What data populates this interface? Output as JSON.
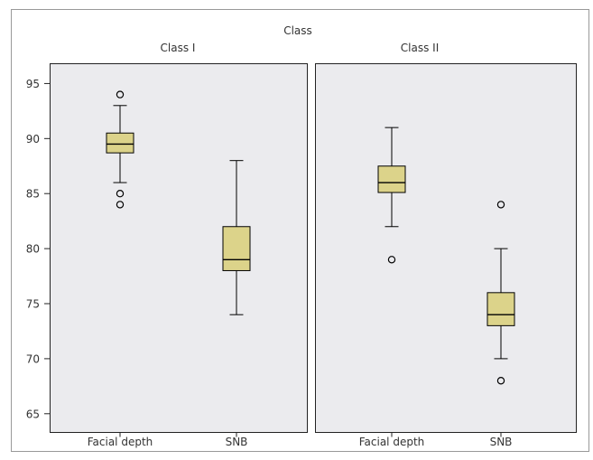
{
  "chart_data": {
    "type": "boxplot",
    "title": "Class",
    "panels": [
      {
        "label": "Class I",
        "categories": [
          "Facial depth",
          "SNB"
        ],
        "boxes": [
          {
            "category": "Facial depth",
            "whisker_low": 86,
            "q1": 88.7,
            "median": 89.5,
            "q3": 90.5,
            "whisker_high": 93,
            "outliers": [
              94,
              85,
              84
            ]
          },
          {
            "category": "SNB",
            "whisker_low": 74,
            "q1": 78,
            "median": 79,
            "q3": 82,
            "whisker_high": 88,
            "outliers": []
          }
        ]
      },
      {
        "label": "Class II",
        "categories": [
          "Facial depth",
          "SNB"
        ],
        "boxes": [
          {
            "category": "Facial depth",
            "whisker_low": 82,
            "q1": 85.1,
            "median": 86,
            "q3": 87.5,
            "whisker_high": 91,
            "outliers": [
              79
            ]
          },
          {
            "category": "SNB",
            "whisker_low": 70,
            "q1": 73,
            "median": 74,
            "q3": 76,
            "whisker_high": 80,
            "outliers": [
              84,
              68
            ]
          }
        ]
      }
    ],
    "yticks": [
      65,
      70,
      75,
      80,
      85,
      90,
      95
    ],
    "ylim": [
      63.3,
      96.8
    ],
    "colors": {
      "box_fill": "#dcd38a",
      "panel_bg": "#ebebee",
      "line": "#000000",
      "text": "#333333"
    }
  }
}
